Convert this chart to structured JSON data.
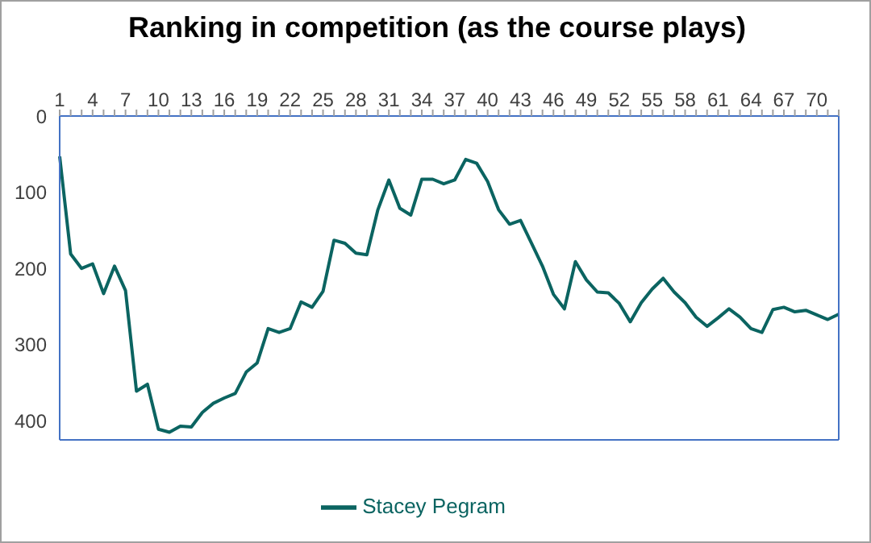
{
  "chart_data": {
    "type": "line",
    "title": "Ranking in competition (as the course plays)",
    "categories": [
      "1",
      null,
      null,
      "4",
      null,
      null,
      "7",
      null,
      null,
      "10",
      null,
      null,
      "13",
      null,
      null,
      "16",
      null,
      null,
      "19",
      null,
      null,
      "22",
      null,
      null,
      "25",
      null,
      null,
      "28",
      null,
      null,
      "31",
      null,
      null,
      "34",
      null,
      null,
      "37",
      null,
      null,
      "40",
      null,
      null,
      "43",
      null,
      null,
      "46",
      null,
      null,
      "49",
      null,
      null,
      "52",
      null,
      null,
      "55",
      null,
      null,
      "58",
      null,
      null,
      "61",
      null,
      null,
      "64",
      null,
      null,
      "67",
      null,
      null,
      "70",
      null,
      null
    ],
    "series": [
      {
        "name": "Stacey Pegram",
        "color": "#0b6461",
        "values": [
          53,
          181,
          200,
          194,
          233,
          197,
          229,
          361,
          352,
          411,
          415,
          407,
          408,
          389,
          377,
          370,
          364,
          336,
          324,
          279,
          284,
          279,
          244,
          251,
          230,
          163,
          167,
          180,
          182,
          123,
          84,
          121,
          130,
          83,
          83,
          89,
          84,
          57,
          62,
          86,
          123,
          142,
          137,
          167,
          197,
          234,
          253,
          191,
          215,
          231,
          232,
          246,
          270,
          245,
          227,
          213,
          231,
          245,
          264,
          276,
          265,
          253,
          264,
          279,
          284,
          254,
          251,
          257,
          255,
          261,
          267,
          260
        ]
      }
    ],
    "ylim": [
      425,
      0
    ],
    "yticks": [
      0,
      100,
      200,
      300,
      400
    ],
    "legend": "bottom"
  }
}
